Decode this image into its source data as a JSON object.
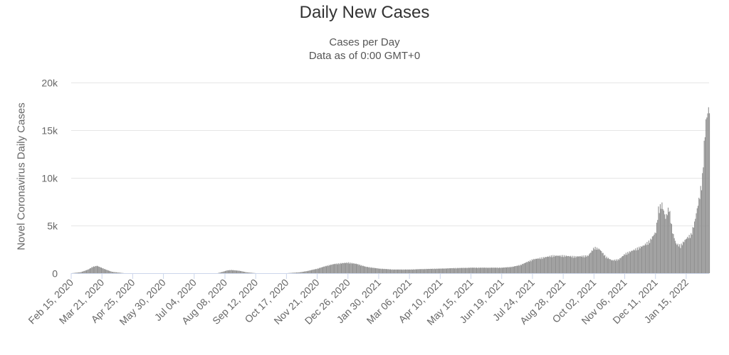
{
  "chart_data": {
    "type": "bar",
    "title": "Daily New Cases",
    "subtitle_lines": [
      "Cases per Day",
      "Data as of 0:00 GMT+0"
    ],
    "xlabel": "",
    "ylabel": "Novel Coronavirus Daily Cases",
    "ylim": [
      0,
      20000
    ],
    "y_ticks": [
      0,
      5000,
      10000,
      15000,
      20000
    ],
    "y_tick_labels": [
      "0",
      "5k",
      "10k",
      "15k",
      "20k"
    ],
    "x_range": [
      "2020-02-15",
      "2022-02-10"
    ],
    "x_tick_labels": [
      "Feb 15, 2020",
      "Mar 21, 2020",
      "Apr 25, 2020",
      "May 30, 2020",
      "Jul 04, 2020",
      "Aug 08, 2020",
      "Sep 12, 2020",
      "Oct 17, 2020",
      "Nov 21, 2020",
      "Dec 26, 2020",
      "Jan 30, 2021",
      "Mar 06, 2021",
      "Apr 10, 2021",
      "May 15, 2021",
      "Jun 19, 2021",
      "Jul 24, 2021",
      "Aug 28, 2021",
      "Oct 02, 2021",
      "Nov 06, 2021",
      "Dec 11, 2021",
      "Jan 15, 2022"
    ],
    "grid": true,
    "bar_color": "#919191",
    "series": [
      {
        "x": [
          "2020-02-15",
          "2020-02-25",
          "2020-03-05",
          "2020-03-10",
          "2020-03-15",
          "2020-03-20",
          "2020-03-25",
          "2020-04-01",
          "2020-04-15",
          "2020-05-30",
          "2020-07-04",
          "2020-07-30",
          "2020-08-05",
          "2020-08-10",
          "2020-08-15",
          "2020-08-20",
          "2020-08-25",
          "2020-09-01",
          "2020-09-12",
          "2020-10-17",
          "2020-11-01",
          "2020-11-10",
          "2020-11-21",
          "2020-12-01",
          "2020-12-10",
          "2020-12-20",
          "2020-12-26",
          "2021-01-05",
          "2021-01-15",
          "2021-01-30",
          "2021-02-15",
          "2021-03-06",
          "2021-03-20",
          "2021-04-10",
          "2021-04-25",
          "2021-05-15",
          "2021-06-01",
          "2021-06-19",
          "2021-07-01",
          "2021-07-10",
          "2021-07-17",
          "2021-07-24",
          "2021-08-05",
          "2021-08-15",
          "2021-08-28",
          "2021-09-10",
          "2021-09-25",
          "2021-10-02",
          "2021-10-08",
          "2021-10-15",
          "2021-10-22",
          "2021-10-30",
          "2021-11-06",
          "2021-11-13",
          "2021-11-20",
          "2021-11-27",
          "2021-12-04",
          "2021-12-11",
          "2021-12-14",
          "2021-12-18",
          "2021-12-22",
          "2021-12-26",
          "2021-12-30",
          "2022-01-03",
          "2022-01-08",
          "2022-01-15",
          "2022-01-20",
          "2022-01-24",
          "2022-01-27",
          "2022-01-30",
          "2022-02-02",
          "2022-02-04",
          "2022-02-06",
          "2022-02-08",
          "2022-02-10"
        ],
        "values": [
          0,
          100,
          400,
          700,
          800,
          600,
          400,
          150,
          0,
          0,
          0,
          0,
          150,
          300,
          350,
          300,
          250,
          100,
          0,
          0,
          100,
          250,
          500,
          800,
          1000,
          1100,
          1150,
          1000,
          700,
          500,
          400,
          400,
          450,
          500,
          550,
          600,
          600,
          600,
          700,
          900,
          1200,
          1500,
          1700,
          1900,
          1900,
          1800,
          1900,
          2800,
          2600,
          1800,
          1400,
          1500,
          2100,
          2400,
          2700,
          3000,
          3500,
          4500,
          7000,
          7500,
          6000,
          7200,
          4500,
          3200,
          3000,
          3800,
          4200,
          5500,
          7000,
          8500,
          10500,
          14000,
          16500,
          17500,
          18000
        ]
      }
    ]
  }
}
